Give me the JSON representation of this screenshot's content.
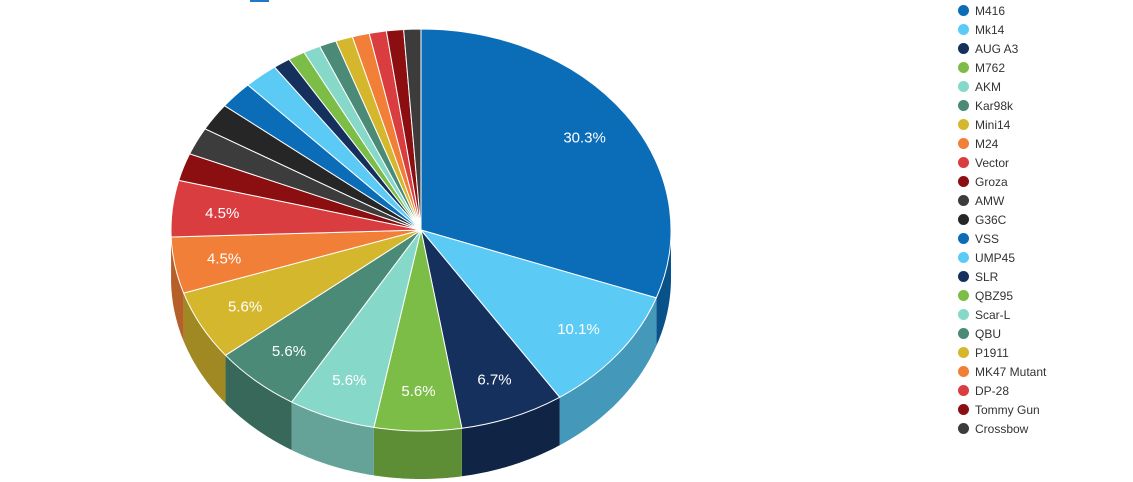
{
  "chart_data": {
    "type": "pie",
    "style": "3d",
    "legend_position": "right",
    "categories": [
      "M416",
      "Mk14",
      "AUG A3",
      "M762",
      "AKM",
      "Kar98k",
      "Mini14",
      "M24",
      "Vector",
      "Groza",
      "AMW",
      "G36C",
      "VSS",
      "UMP45",
      "SLR",
      "QBZ95",
      "Scar-L",
      "QBU",
      "P1911",
      "MK47 Mutant",
      "DP-28",
      "Tommy Gun",
      "Crossbow"
    ],
    "values": [
      30.3,
      10.1,
      6.7,
      5.6,
      5.6,
      5.6,
      5.6,
      4.5,
      4.5,
      2.2,
      2.2,
      2.2,
      2.2,
      2.2,
      1.1,
      1.1,
      1.1,
      1.1,
      1.1,
      1.1,
      1.1,
      1.1,
      1.1
    ],
    "data_labels": [
      "30.3%",
      "10.1%",
      "6.7%",
      "5.6%",
      "5.6%",
      "5.6%",
      "5.6%",
      "4.5%",
      "4.5%",
      "",
      "",
      "",
      "",
      "",
      "",
      "",
      "",
      "",
      "",
      "",
      "",
      "",
      ""
    ],
    "colors": [
      "#0b6cb7",
      "#5bcbf6",
      "#15305c",
      "#7cbd47",
      "#86d8c9",
      "#4a8a77",
      "#d5b72e",
      "#f17f37",
      "#d93d40",
      "#8b0f10",
      "#3c3c3c",
      "#262626",
      "#0b6cb7",
      "#5bcbf6",
      "#15305c",
      "#7cbd47",
      "#86d8c9",
      "#4a8a77",
      "#d5b72e",
      "#f17f37",
      "#d93d40",
      "#8b0f10",
      "#3c3c3c"
    ]
  }
}
